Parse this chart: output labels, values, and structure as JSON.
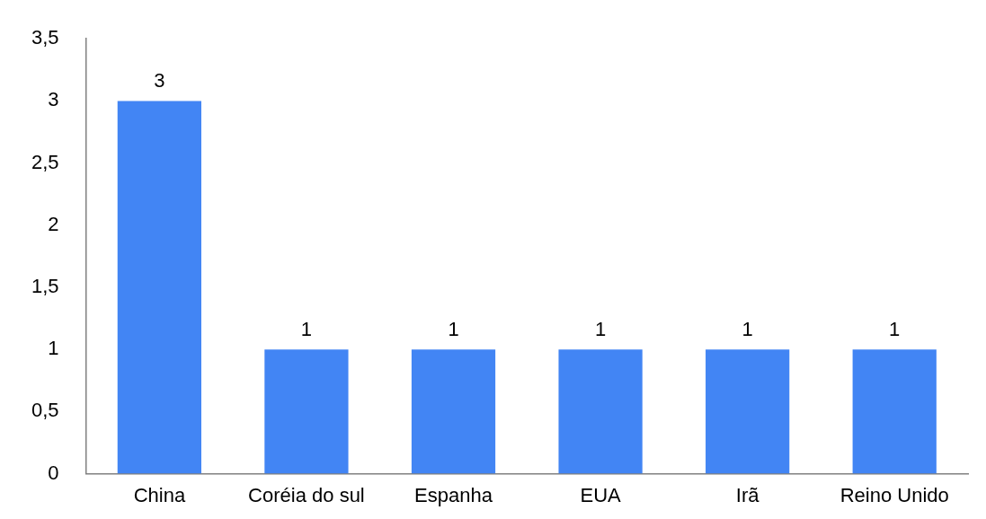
{
  "chart_data": {
    "type": "bar",
    "categories": [
      "China",
      "Coréia do sul",
      "Espanha",
      "EUA",
      "Irã",
      "Reino Unido"
    ],
    "values": [
      3,
      1,
      1,
      1,
      1,
      1
    ],
    "color": "#4285f4",
    "ylim": [
      0,
      3.5
    ],
    "yticks": [
      0,
      {
        "value": 0.5,
        "label": "0,5"
      },
      1,
      {
        "value": 1.5,
        "label": "1,5"
      },
      2,
      {
        "value": 2.5,
        "label": "2,5"
      },
      3,
      {
        "value": 3.5,
        "label": "3,5"
      }
    ],
    "grid": false,
    "legend": false,
    "data_labels": true
  }
}
